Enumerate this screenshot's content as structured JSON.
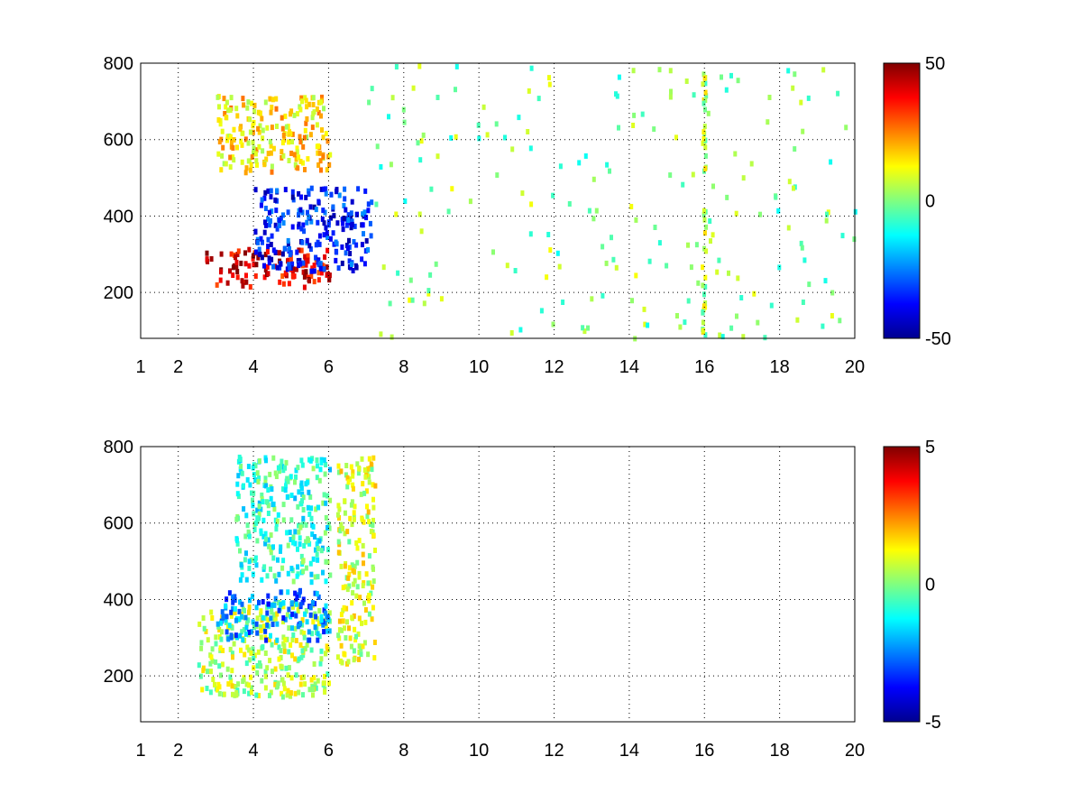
{
  "chart_data": [
    {
      "type": "heatmap",
      "title": "",
      "xlabel": "",
      "ylabel": "",
      "xlim": [
        1,
        20
      ],
      "ylim": [
        80,
        800
      ],
      "xticks": [
        1,
        2,
        4,
        6,
        8,
        10,
        12,
        14,
        16,
        18,
        20
      ],
      "yticks": [
        200,
        400,
        600,
        800
      ],
      "grid": true,
      "colormap": "jet",
      "colorbar": {
        "min": -50,
        "max": 50,
        "ticks": [
          -50,
          0,
          50
        ]
      },
      "features": [
        {
          "name": "red-band",
          "x": [
            2.7,
            6.0
          ],
          "y": [
            220,
            320
          ],
          "value": 40
        },
        {
          "name": "upper-yellow-band",
          "x": [
            3.0,
            6.0
          ],
          "y": [
            520,
            720
          ],
          "value": 15
        },
        {
          "name": "blue-band",
          "x": [
            4.0,
            7.1
          ],
          "y": [
            260,
            480
          ],
          "value": -35
        },
        {
          "name": "scattered-noise",
          "x": [
            7.0,
            20.0
          ],
          "y": [
            80,
            800
          ],
          "value": 0
        },
        {
          "name": "vertical-streak",
          "x": [
            15.9,
            16.0
          ],
          "y": [
            80,
            800
          ],
          "value": 5
        }
      ]
    },
    {
      "type": "heatmap",
      "title": "",
      "xlabel": "",
      "ylabel": "",
      "xlim": [
        1,
        20
      ],
      "ylim": [
        80,
        800
      ],
      "xticks": [
        1,
        2,
        4,
        6,
        8,
        10,
        12,
        14,
        16,
        18,
        20
      ],
      "yticks": [
        200,
        400,
        600,
        800
      ],
      "grid": true,
      "colormap": "jet",
      "colorbar": {
        "min": -5,
        "max": 5,
        "ticks": [
          -5,
          0,
          5
        ]
      },
      "features": [
        {
          "name": "lower-green-band",
          "x": [
            2.5,
            6.0
          ],
          "y": [
            150,
            400
          ],
          "value": 0.5
        },
        {
          "name": "blue-arc",
          "x": [
            3.0,
            6.0
          ],
          "y": [
            300,
            430
          ],
          "value": -2.5
        },
        {
          "name": "upper-cyan-band",
          "x": [
            3.5,
            6.0
          ],
          "y": [
            450,
            780
          ],
          "value": -0.8
        },
        {
          "name": "right-band",
          "x": [
            6.2,
            7.2
          ],
          "y": [
            230,
            780
          ],
          "value": 0.8
        }
      ]
    }
  ]
}
